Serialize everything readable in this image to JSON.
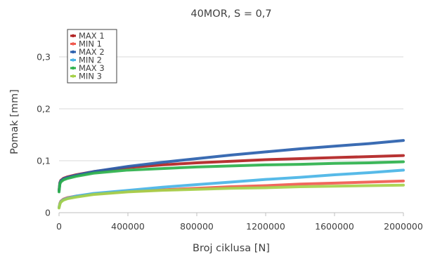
{
  "chart_data": {
    "type": "line",
    "title": "40MOR, S = 0,7",
    "xlabel": "Broj ciklusa [N]",
    "ylabel": "Pomak [mm]",
    "xlim": [
      0,
      2000000
    ],
    "ylim": [
      0,
      0.35
    ],
    "x_ticks": [
      0,
      400000,
      800000,
      1200000,
      1600000,
      2000000
    ],
    "x_tick_labels": [
      "0",
      "400000",
      "800000",
      "1200000",
      "1600000",
      "2000000"
    ],
    "y_ticks": [
      0,
      0.1,
      0.2,
      0.3
    ],
    "y_tick_labels": [
      "0",
      "0,1",
      "0,2",
      "0,3"
    ],
    "grid": "horizontal",
    "legend_position": "top-left",
    "x": [
      0,
      5000,
      10000,
      25000,
      50000,
      100000,
      200000,
      400000,
      600000,
      800000,
      1000000,
      1200000,
      1400000,
      1600000,
      1800000,
      2000000
    ],
    "series": [
      {
        "name": "MAX 1",
        "color": "#b22222",
        "values": [
          0.043,
          0.058,
          0.062,
          0.066,
          0.069,
          0.073,
          0.079,
          0.087,
          0.092,
          0.096,
          0.099,
          0.102,
          0.104,
          0.106,
          0.108,
          0.11
        ]
      },
      {
        "name": "MIN  1",
        "color": "#f05a4f",
        "values": [
          0.01,
          0.018,
          0.022,
          0.026,
          0.029,
          0.032,
          0.036,
          0.041,
          0.044,
          0.047,
          0.05,
          0.052,
          0.055,
          0.057,
          0.059,
          0.061
        ]
      },
      {
        "name": "MAX 2",
        "color": "#2a5fad",
        "values": [
          0.042,
          0.057,
          0.061,
          0.065,
          0.068,
          0.072,
          0.079,
          0.089,
          0.097,
          0.104,
          0.111,
          0.117,
          0.123,
          0.128,
          0.133,
          0.139
        ]
      },
      {
        "name": "MIN  2",
        "color": "#49b4e6",
        "values": [
          0.01,
          0.017,
          0.021,
          0.025,
          0.028,
          0.032,
          0.037,
          0.043,
          0.049,
          0.054,
          0.059,
          0.064,
          0.068,
          0.073,
          0.077,
          0.082
        ]
      },
      {
        "name": "MAX 3",
        "color": "#2db14c",
        "values": [
          0.04,
          0.055,
          0.059,
          0.063,
          0.066,
          0.07,
          0.076,
          0.082,
          0.085,
          0.088,
          0.09,
          0.092,
          0.093,
          0.095,
          0.096,
          0.098
        ]
      },
      {
        "name": "MIN  3",
        "color": "#a6d14a",
        "values": [
          0.009,
          0.016,
          0.02,
          0.024,
          0.027,
          0.03,
          0.035,
          0.04,
          0.043,
          0.045,
          0.047,
          0.048,
          0.05,
          0.051,
          0.052,
          0.053
        ]
      }
    ]
  }
}
